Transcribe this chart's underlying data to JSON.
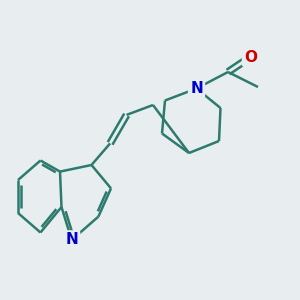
{
  "bg_color": "#e8eef0",
  "bond_color": "#2d7a6e",
  "n_color": "#0000cc",
  "o_color": "#cc0000",
  "bond_width": 1.8,
  "figsize": [
    3.0,
    3.0
  ],
  "dpi": 100,
  "xlim": [
    0,
    10
  ],
  "ylim": [
    0,
    10
  ],
  "label_fontsize": 11
}
